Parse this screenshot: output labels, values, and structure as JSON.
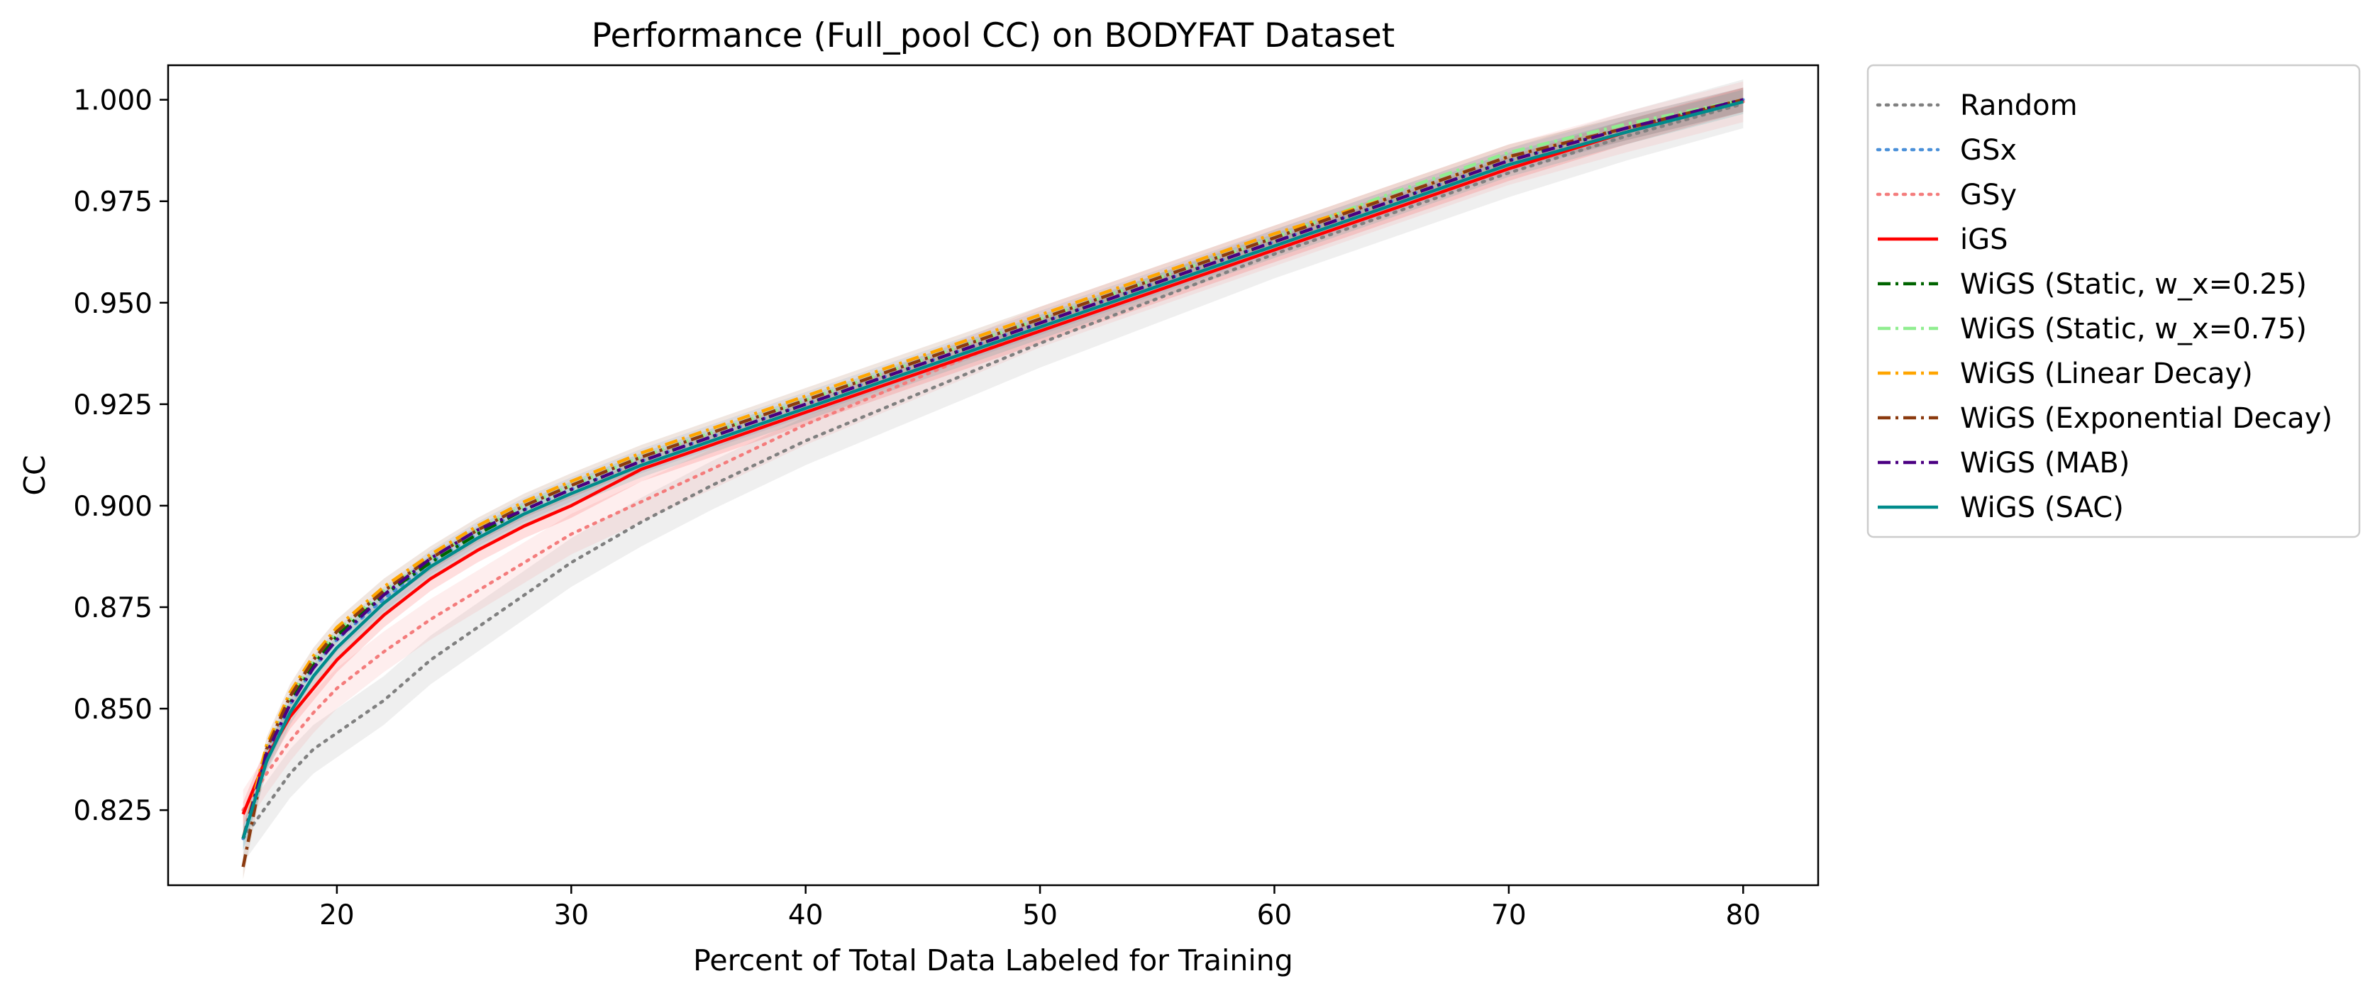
{
  "chart_data": {
    "type": "line",
    "title": "Performance (Full_pool CC) on BODYFAT Dataset",
    "xlabel": "Percent of Total Data Labeled for Training",
    "ylabel": "CC",
    "xlim": [
      12.8,
      83.2
    ],
    "ylim": [
      0.8065,
      1.0085
    ],
    "xticks": [
      20,
      30,
      40,
      50,
      60,
      70,
      80
    ],
    "yticks": [
      0.825,
      0.85,
      0.875,
      0.9,
      0.925,
      0.95,
      0.975,
      1.0
    ],
    "xtick_labels": [
      "20",
      "30",
      "40",
      "50",
      "60",
      "70",
      "80"
    ],
    "ytick_labels": [
      "0.825",
      "0.850",
      "0.875",
      "0.900",
      "0.925",
      "0.950",
      "0.975",
      "1.000"
    ],
    "grid": false,
    "legend_position": "outside-right-top",
    "x": [
      16,
      17,
      18,
      19,
      20,
      22,
      24,
      26,
      28,
      30,
      33,
      36,
      40,
      45,
      50,
      55,
      60,
      65,
      70,
      75,
      80
    ],
    "series": [
      {
        "name": "Random",
        "color": "#808080",
        "dash": "dotted",
        "values": [
          0.818,
          0.826,
          0.834,
          0.84,
          0.844,
          0.852,
          0.862,
          0.87,
          0.878,
          0.886,
          0.896,
          0.905,
          0.916,
          0.928,
          0.94,
          0.951,
          0.962,
          0.972,
          0.982,
          0.991,
          0.999
        ],
        "band": 0.006
      },
      {
        "name": "GSx",
        "color": "#4a90d9",
        "dash": "dotted",
        "values": [
          0.818,
          0.838,
          0.851,
          0.86,
          0.867,
          0.877,
          0.886,
          0.893,
          0.899,
          0.904,
          0.911,
          0.917,
          0.925,
          0.935,
          0.945,
          0.955,
          0.965,
          0.975,
          0.985,
          0.993,
          1.0
        ],
        "band": 0.003
      },
      {
        "name": "GSy",
        "color": "#f47c7c",
        "dash": "dotted",
        "values": [
          0.825,
          0.834,
          0.842,
          0.849,
          0.855,
          0.864,
          0.872,
          0.879,
          0.886,
          0.893,
          0.901,
          0.909,
          0.92,
          0.932,
          0.944,
          0.954,
          0.964,
          0.974,
          0.984,
          0.992,
          0.9995
        ],
        "band": 0.005
      },
      {
        "name": "iGS",
        "color": "#ff0000",
        "dash": "solid",
        "values": [
          0.824,
          0.838,
          0.848,
          0.855,
          0.862,
          0.873,
          0.882,
          0.889,
          0.895,
          0.9,
          0.909,
          0.915,
          0.923,
          0.933,
          0.943,
          0.953,
          0.963,
          0.973,
          0.983,
          0.992,
          1.0
        ],
        "band": 0.003
      },
      {
        "name": "WiGS (Static, w_x=0.25)",
        "color": "#006400",
        "dash": "dashdot",
        "values": [
          0.818,
          0.84,
          0.852,
          0.861,
          0.868,
          0.878,
          0.886,
          0.893,
          0.899,
          0.904,
          0.911,
          0.917,
          0.925,
          0.935,
          0.945,
          0.955,
          0.965,
          0.975,
          0.985,
          0.993,
          1.0
        ],
        "band": 0.0
      },
      {
        "name": "WiGS (Static, w_x=0.75)",
        "color": "#90ee90",
        "dash": "dashdot",
        "values": [
          0.818,
          0.84,
          0.853,
          0.862,
          0.869,
          0.879,
          0.887,
          0.894,
          0.9,
          0.905,
          0.912,
          0.918,
          0.926,
          0.936,
          0.946,
          0.956,
          0.966,
          0.977,
          0.987,
          0.994,
          1.0
        ],
        "band": 0.0
      },
      {
        "name": "WiGS (Linear Decay)",
        "color": "#ffa500",
        "dash": "dashdot",
        "values": [
          0.818,
          0.841,
          0.854,
          0.863,
          0.87,
          0.88,
          0.888,
          0.895,
          0.901,
          0.906,
          0.913,
          0.919,
          0.927,
          0.937,
          0.947,
          0.957,
          0.967,
          0.976,
          0.986,
          0.993,
          1.0
        ],
        "band": 0.0
      },
      {
        "name": "WiGS (Exponential Decay)",
        "color": "#8b3a0f",
        "dash": "dashdot",
        "values": [
          0.811,
          0.84,
          0.853,
          0.862,
          0.869,
          0.879,
          0.887,
          0.894,
          0.9,
          0.905,
          0.912,
          0.918,
          0.926,
          0.936,
          0.946,
          0.956,
          0.966,
          0.976,
          0.986,
          0.993,
          1.0
        ],
        "band": 0.003
      },
      {
        "name": "WiGS (MAB)",
        "color": "#4b0082",
        "dash": "dashdot",
        "values": [
          0.818,
          0.839,
          0.851,
          0.86,
          0.867,
          0.878,
          0.887,
          0.894,
          0.899,
          0.904,
          0.911,
          0.917,
          0.925,
          0.935,
          0.945,
          0.955,
          0.965,
          0.975,
          0.985,
          0.993,
          1.0
        ],
        "band": 0.0
      },
      {
        "name": "WiGS (SAC)",
        "color": "#008b8b",
        "dash": "solid",
        "values": [
          0.818,
          0.837,
          0.849,
          0.858,
          0.865,
          0.876,
          0.885,
          0.892,
          0.898,
          0.903,
          0.91,
          0.916,
          0.924,
          0.934,
          0.944,
          0.954,
          0.964,
          0.974,
          0.984,
          0.992,
          0.9995
        ],
        "band": 0.003
      }
    ]
  }
}
